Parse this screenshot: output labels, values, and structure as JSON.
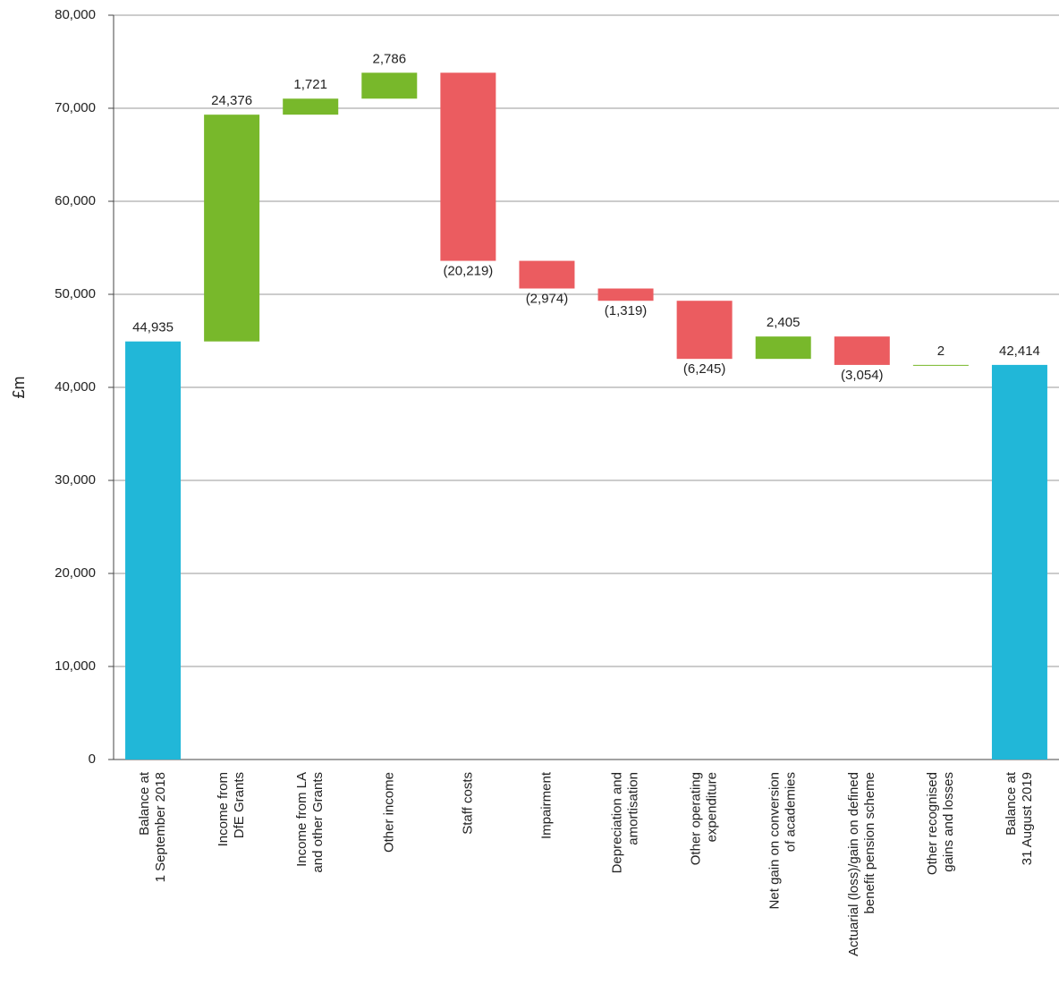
{
  "chart_data": {
    "type": "waterfall",
    "y_label": "£m",
    "categories": [
      [
        "Balance at",
        "1 September 2018"
      ],
      [
        "Income from",
        "DfE Grants"
      ],
      [
        "Income from LA",
        "and other Grants"
      ],
      [
        "Other income"
      ],
      [
        "Staff costs"
      ],
      [
        "Impairment"
      ],
      [
        "Depreciation and",
        "amortisation"
      ],
      [
        "Other operating",
        "expenditure"
      ],
      [
        "Net gain on conversion",
        "of academies"
      ],
      [
        "Actuarial (loss)/gain on defined",
        "benefit pension scheme"
      ],
      [
        "Other recognised",
        "gains and losses"
      ],
      [
        "Balance at",
        "31 August 2019"
      ]
    ],
    "values": [
      44935,
      24376,
      1721,
      2786,
      -20219,
      -2974,
      -1319,
      -6245,
      2405,
      -3054,
      2,
      42414
    ],
    "value_labels": [
      "44,935",
      "24,376",
      "1,721",
      "2,786",
      "(20,219)",
      "(2,974)",
      "(1,319)",
      "(6,245)",
      "2,405",
      "(3,054)",
      "2",
      "42,414"
    ],
    "measure": [
      "total",
      "relative",
      "relative",
      "relative",
      "relative",
      "relative",
      "relative",
      "relative",
      "relative",
      "relative",
      "relative",
      "total"
    ],
    "colors": {
      "total": "#21b7d8",
      "increase": "#78b82b",
      "decrease": "#eb5c60"
    },
    "ylim": [
      0,
      80000
    ],
    "yticks": [
      0,
      {
        "value": 10000,
        "label": "10,000"
      },
      {
        "value": 20000,
        "label": "20,000"
      },
      {
        "value": 30000,
        "label": "30,000"
      },
      {
        "value": 40000,
        "label": "40,000"
      },
      {
        "value": 50000,
        "label": "50,000"
      },
      {
        "value": 60000,
        "label": "60,000"
      },
      {
        "value": 70000,
        "label": "70,000"
      },
      {
        "value": 80000,
        "label": "80,000"
      }
    ],
    "grid": true
  }
}
